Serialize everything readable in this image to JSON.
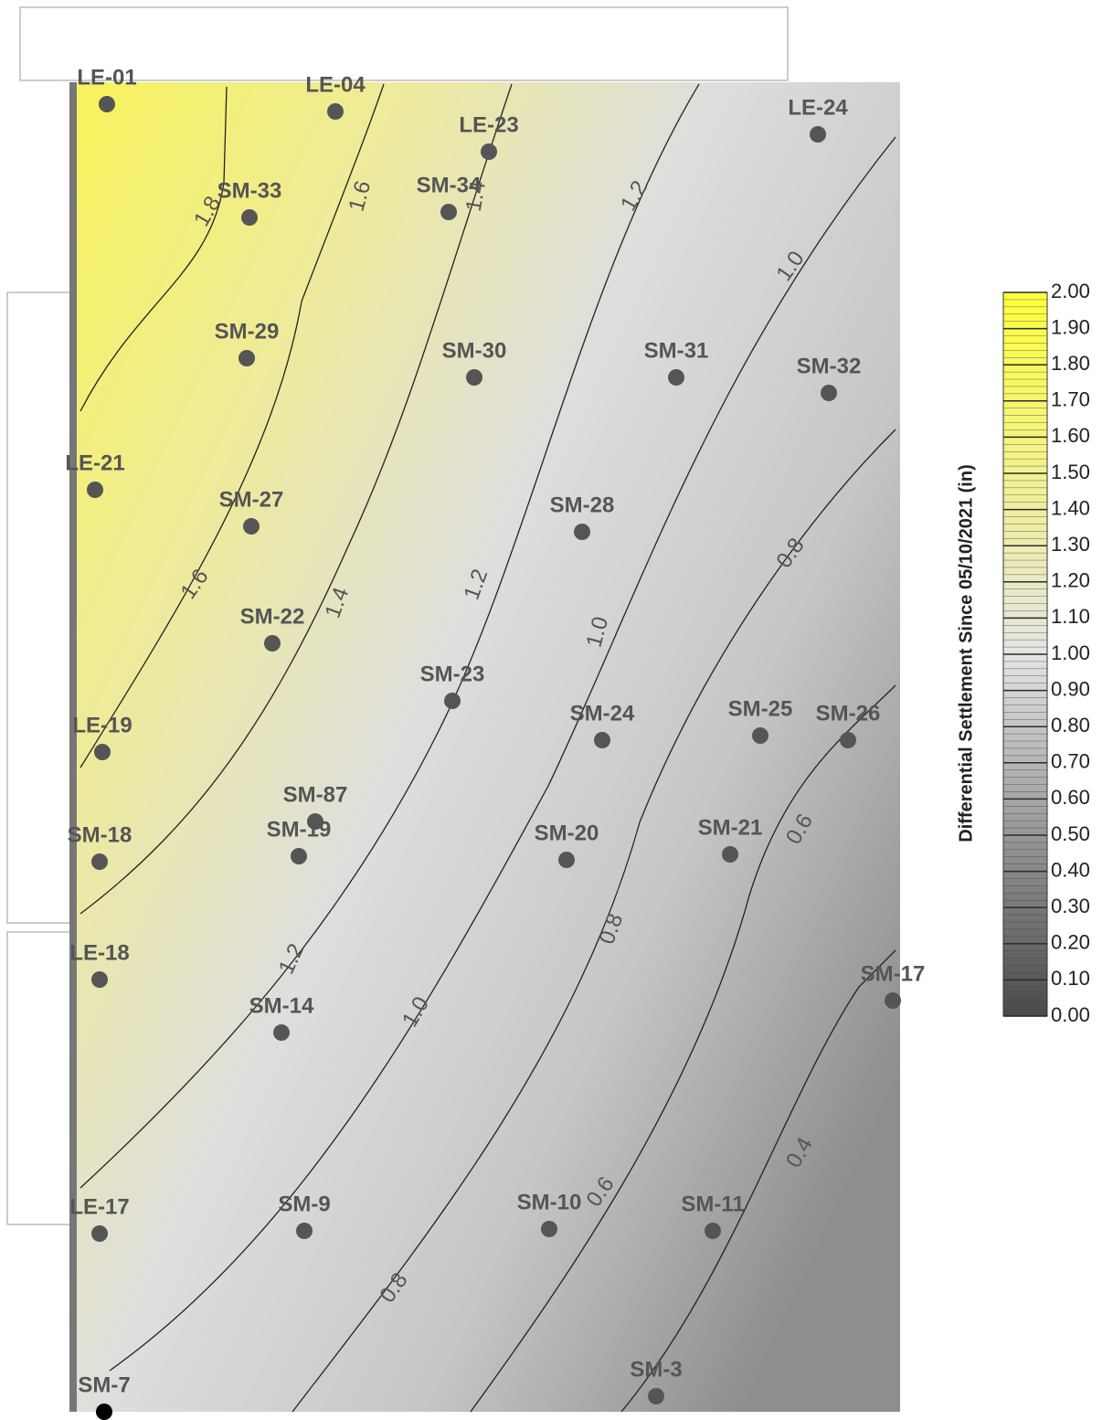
{
  "points": [
    {
      "label": "LE-01"
    },
    {
      "label": "LE-04"
    },
    {
      "label": "LE-23"
    },
    {
      "label": "LE-24"
    },
    {
      "label": "SM-33"
    },
    {
      "label": "SM-34"
    },
    {
      "label": "SM-29"
    },
    {
      "label": "SM-30"
    },
    {
      "label": "SM-31"
    },
    {
      "label": "SM-32"
    },
    {
      "label": "LE-21"
    },
    {
      "label": "SM-27"
    },
    {
      "label": "SM-28"
    },
    {
      "label": "SM-22"
    },
    {
      "label": "SM-23"
    },
    {
      "label": "SM-24"
    },
    {
      "label": "SM-25"
    },
    {
      "label": "SM-26"
    },
    {
      "label": "LE-19"
    },
    {
      "label": "SM-87"
    },
    {
      "label": "SM-19"
    },
    {
      "label": "SM-18"
    },
    {
      "label": "SM-20"
    },
    {
      "label": "SM-21"
    },
    {
      "label": "LE-18"
    },
    {
      "label": "SM-17"
    },
    {
      "label": "SM-14"
    },
    {
      "label": "LE-17"
    },
    {
      "label": "SM-9"
    },
    {
      "label": "SM-10"
    },
    {
      "label": "SM-11"
    },
    {
      "label": "SM-3"
    },
    {
      "label": "SM-7"
    }
  ],
  "contour_labels": [
    "1.8",
    "1.6",
    "1.4",
    "1.2",
    "1.0",
    "1.6",
    "1.4",
    "1.2",
    "1.0",
    "0.8",
    "0.6",
    "0.8",
    "1.2",
    "1.0",
    "0.4",
    "0.6",
    "0.8"
  ],
  "colorbar": {
    "title": "Differential Settlement Since 05/10/2021 (in)",
    "ticks": [
      "2.00",
      "1.90",
      "1.80",
      "1.70",
      "1.60",
      "1.50",
      "1.40",
      "1.30",
      "1.20",
      "1.10",
      "1.00",
      "0.90",
      "0.80",
      "0.70",
      "0.60",
      "0.50",
      "0.40",
      "0.30",
      "0.20",
      "0.10",
      "0.00"
    ]
  }
}
